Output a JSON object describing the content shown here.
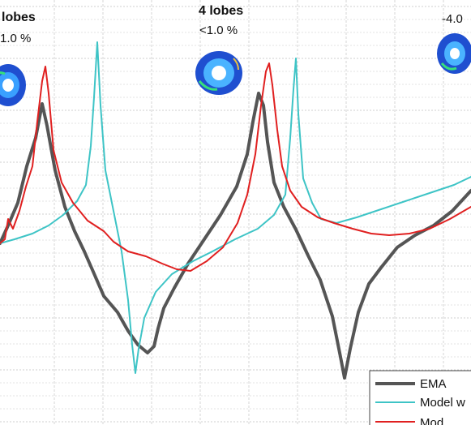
{
  "chart_data": {
    "type": "line",
    "title": "",
    "xlabel": "",
    "ylabel": "",
    "grid": true,
    "legend_placement": "bottom-right",
    "annotations": [
      {
        "title": "lobes",
        "value": "1.0 %",
        "prefix": "<",
        "mode_icon": "ring-mode-icon"
      },
      {
        "title": "4 lobes",
        "value": "1.0 %",
        "prefix": "<",
        "mode_icon": "ring-mode-icon"
      },
      {
        "title": "",
        "value": "-4.0",
        "prefix": "",
        "mode_icon": "ring-mode-icon"
      }
    ],
    "series": [
      {
        "name": "EMA",
        "color": "#555555",
        "style": "thick"
      },
      {
        "name": "Model w",
        "color": "#3ec4c6",
        "style": "thin"
      },
      {
        "name": "Mod",
        "color": "#e02020",
        "style": "thin"
      }
    ]
  }
}
